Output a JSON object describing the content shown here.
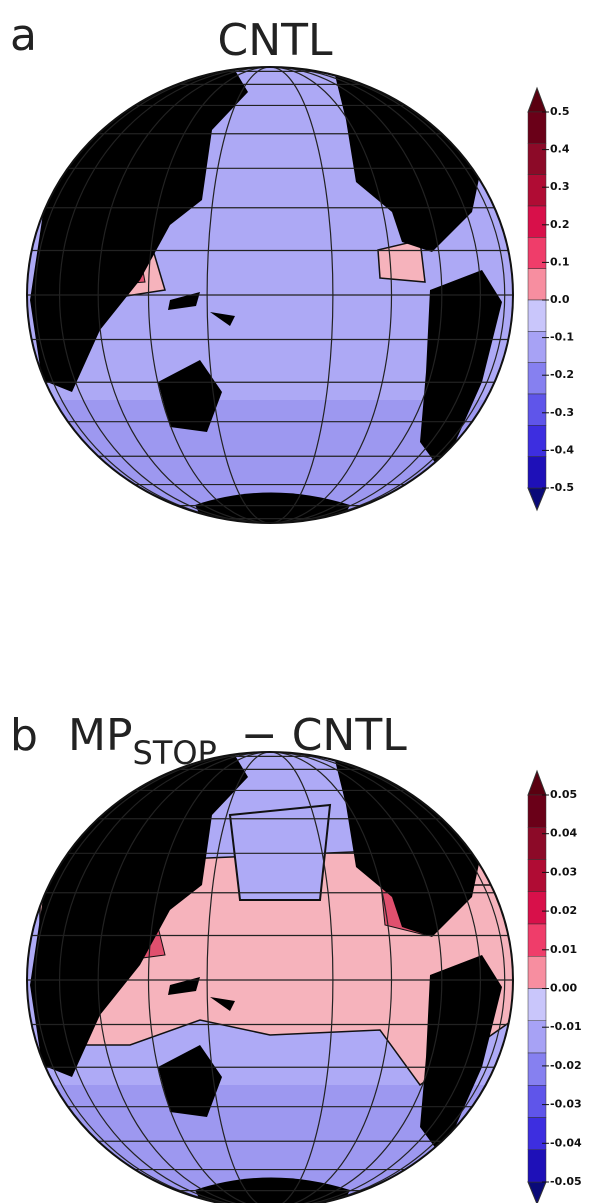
{
  "panels": [
    {
      "label": "a",
      "title": "CNTL",
      "colorbar": {
        "lim": [
          -0.5,
          0.5
        ],
        "ticks": [
          0.5,
          0.4,
          0.3,
          0.2,
          0.1,
          {
            "value": 0,
            "label": "0.0"
          },
          -0.1,
          -0.2,
          -0.3,
          -0.4,
          -0.5
        ],
        "colors": [
          "#6a0018",
          "#8c0a28",
          "#b00c34",
          "#d8104a",
          "#ef3d6a",
          "#f78ea0",
          "#c9c6fb",
          "#a7a2f5",
          "#8680f0",
          "#5f55ea",
          "#3d2ee0",
          "#1e10b8"
        ],
        "under_color": "#0a0a78",
        "over_color": "#5a0010"
      }
    },
    {
      "label": "b",
      "title": "MP",
      "title_subscript": "STOP",
      "title_suffix": "− CNTL",
      "colorbar": {
        "lim": [
          -0.05,
          0.05
        ],
        "ticks": [
          0.05,
          0.04,
          0.03,
          0.02,
          0.01,
          {
            "value": 0,
            "label": "0.00"
          },
          -0.01,
          -0.02,
          -0.03,
          -0.04,
          -0.05
        ],
        "colors": [
          "#6a0018",
          "#8c0a28",
          "#b00c34",
          "#d8104a",
          "#ef3d6a",
          "#f78ea0",
          "#c9c6fb",
          "#a7a2f5",
          "#8680f0",
          "#5f55ea",
          "#3d2ee0",
          "#1e10b8"
        ],
        "under_color": "#0a0a78",
        "over_color": "#5a0010"
      }
    }
  ]
}
